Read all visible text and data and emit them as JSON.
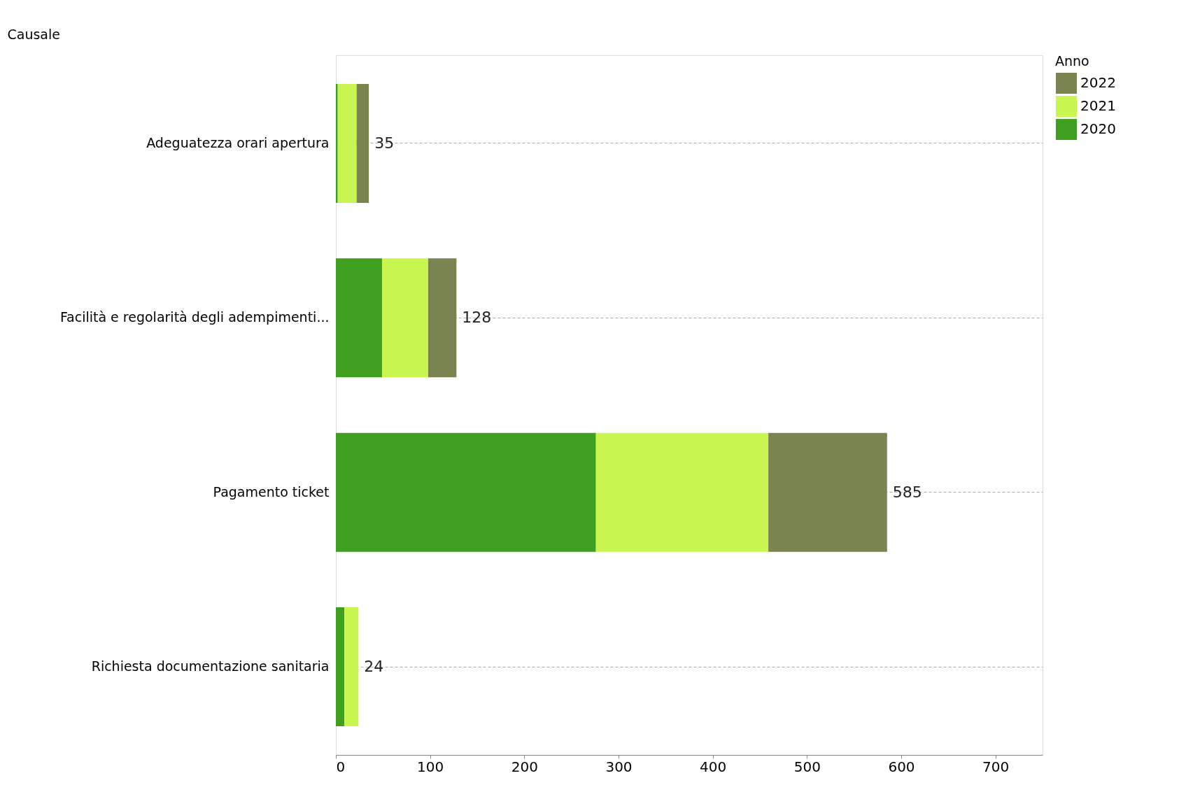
{
  "chart_data": {
    "type": "bar",
    "orientation": "horizontal",
    "stacked": true,
    "ylabel": "Causale",
    "legend_title": "Anno",
    "legend": "top right",
    "grid": "y",
    "categories": [
      "Adeguatezza orari apertura",
      "Facilità e regolarità degli adempimenti...",
      "Pagamento ticket",
      "Richiesta documentazione sanitaria"
    ],
    "series": [
      {
        "name": "2020",
        "color": "#3f9f1f",
        "values": [
          2,
          49,
          276,
          9
        ]
      },
      {
        "name": "2021",
        "color": "#c8f550",
        "values": [
          20,
          49,
          183,
          15
        ]
      },
      {
        "name": "2022",
        "color": "#7a8450",
        "values": [
          13,
          30,
          126,
          null
        ]
      }
    ],
    "totals": [
      "35",
      "128",
      "585",
      "24"
    ],
    "xlim": [
      0,
      750
    ],
    "xticks": [
      0,
      100,
      200,
      300,
      400,
      500,
      600,
      700
    ]
  }
}
